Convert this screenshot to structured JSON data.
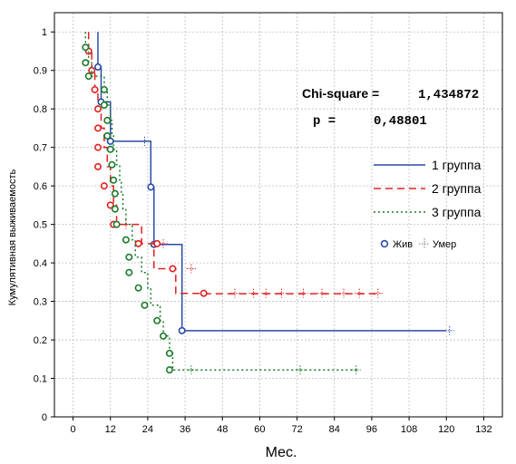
{
  "chart_data": {
    "type": "line",
    "title": "",
    "xlabel": "Мес.",
    "ylabel": "Кумулятивная выживаемость",
    "xlim": [
      -6,
      138
    ],
    "ylim": [
      0,
      1.05
    ],
    "xticks": [
      0,
      12,
      24,
      36,
      48,
      60,
      72,
      84,
      96,
      108,
      120,
      132
    ],
    "yticks": [
      0,
      0.1,
      0.2,
      0.3,
      0.4,
      0.5,
      0.6,
      0.7,
      0.8,
      0.9,
      1
    ],
    "ytick_labels": [
      "0",
      "0.1",
      "0.2",
      "0.3",
      "0.4",
      "0.5",
      "0.6",
      "0.7",
      "0.8",
      "0.9",
      "1"
    ],
    "grid": true,
    "annotations": {
      "chi_label": "Chi-square =",
      "chi_value": "1,434872",
      "p_label": "p =",
      "p_value": "0,48801"
    },
    "legend": {
      "placement": "right",
      "censor_alive": "Жив",
      "censor_dead": "Умер"
    },
    "series": [
      {
        "name": "1 группа",
        "color": "#2b4aa8",
        "dash": "solid",
        "steps": [
          [
            8,
            1.0
          ],
          [
            8,
            0.909
          ],
          [
            9,
            0.909
          ],
          [
            9,
            0.818
          ],
          [
            12,
            0.818
          ],
          [
            12,
            0.716
          ],
          [
            25,
            0.716
          ],
          [
            25,
            0.597
          ],
          [
            26,
            0.597
          ],
          [
            26,
            0.448
          ],
          [
            35,
            0.448
          ],
          [
            35,
            0.224
          ],
          [
            120,
            0.224
          ]
        ],
        "alive": [
          [
            8,
            0.909
          ],
          [
            9,
            0.818
          ],
          [
            12,
            0.716
          ],
          [
            25,
            0.597
          ],
          [
            26,
            0.448
          ],
          [
            35,
            0.224
          ]
        ],
        "dead": [
          [
            23,
            0.716
          ],
          [
            121,
            0.224
          ]
        ]
      },
      {
        "name": "2 группа",
        "color": "#e02020",
        "dash": "dashed",
        "steps": [
          [
            5,
            1.0
          ],
          [
            5,
            0.95
          ],
          [
            6,
            0.95
          ],
          [
            6,
            0.9
          ],
          [
            7,
            0.9
          ],
          [
            7,
            0.85
          ],
          [
            8,
            0.85
          ],
          [
            8,
            0.8
          ],
          [
            9,
            0.8
          ],
          [
            9,
            0.75
          ],
          [
            10,
            0.75
          ],
          [
            10,
            0.7
          ],
          [
            11,
            0.7
          ],
          [
            11,
            0.65
          ],
          [
            12,
            0.65
          ],
          [
            12,
            0.6
          ],
          [
            13,
            0.6
          ],
          [
            13,
            0.55
          ],
          [
            14,
            0.55
          ],
          [
            14,
            0.5
          ],
          [
            22,
            0.5
          ],
          [
            22,
            0.45
          ],
          [
            26,
            0.45
          ],
          [
            26,
            0.385
          ],
          [
            33,
            0.385
          ],
          [
            33,
            0.321
          ],
          [
            43,
            0.321
          ],
          [
            43,
            0.32
          ],
          [
            99,
            0.32
          ]
        ],
        "alive": [
          [
            5,
            0.95
          ],
          [
            6,
            0.9
          ],
          [
            7,
            0.85
          ],
          [
            8,
            0.8
          ],
          [
            8,
            0.75
          ],
          [
            8,
            0.7
          ],
          [
            8,
            0.65
          ],
          [
            10,
            0.6
          ],
          [
            12,
            0.55
          ],
          [
            13,
            0.5
          ],
          [
            21,
            0.45
          ],
          [
            27,
            0.45
          ],
          [
            32,
            0.385
          ],
          [
            42,
            0.321
          ]
        ],
        "dead": [
          [
            17,
            0.5
          ],
          [
            29,
            0.45
          ],
          [
            38,
            0.385
          ],
          [
            52,
            0.321
          ],
          [
            58,
            0.321
          ],
          [
            62,
            0.321
          ],
          [
            67,
            0.321
          ],
          [
            74,
            0.321
          ],
          [
            80,
            0.321
          ],
          [
            87,
            0.321
          ],
          [
            92,
            0.321
          ],
          [
            98,
            0.321
          ]
        ]
      },
      {
        "name": "3 группа",
        "color": "#1a7a2a",
        "dash": "dotted",
        "steps": [
          [
            4,
            1.0
          ],
          [
            4,
            0.96
          ],
          [
            5,
            0.96
          ],
          [
            5,
            0.92
          ],
          [
            6,
            0.92
          ],
          [
            6,
            0.885
          ],
          [
            10,
            0.885
          ],
          [
            10,
            0.85
          ],
          [
            11,
            0.85
          ],
          [
            11,
            0.81
          ],
          [
            12,
            0.81
          ],
          [
            12,
            0.77
          ],
          [
            12.5,
            0.77
          ],
          [
            12.5,
            0.73
          ],
          [
            13,
            0.73
          ],
          [
            13,
            0.695
          ],
          [
            14,
            0.695
          ],
          [
            14,
            0.655
          ],
          [
            15,
            0.655
          ],
          [
            15,
            0.615
          ],
          [
            15.5,
            0.615
          ],
          [
            15.5,
            0.58
          ],
          [
            16,
            0.58
          ],
          [
            16,
            0.54
          ],
          [
            17,
            0.54
          ],
          [
            17,
            0.5
          ],
          [
            19,
            0.5
          ],
          [
            19,
            0.46
          ],
          [
            20,
            0.46
          ],
          [
            20,
            0.415
          ],
          [
            22,
            0.415
          ],
          [
            22,
            0.375
          ],
          [
            24,
            0.375
          ],
          [
            24,
            0.335
          ],
          [
            25,
            0.335
          ],
          [
            25,
            0.29
          ],
          [
            28,
            0.29
          ],
          [
            28,
            0.25
          ],
          [
            29,
            0.25
          ],
          [
            29,
            0.21
          ],
          [
            31,
            0.21
          ],
          [
            31,
            0.165
          ],
          [
            32,
            0.165
          ],
          [
            32,
            0.122
          ],
          [
            92,
            0.122
          ]
        ],
        "alive": [
          [
            4,
            0.96
          ],
          [
            4,
            0.92
          ],
          [
            5,
            0.885
          ],
          [
            10,
            0.85
          ],
          [
            10,
            0.81
          ],
          [
            11,
            0.77
          ],
          [
            11,
            0.73
          ],
          [
            12,
            0.695
          ],
          [
            12.5,
            0.655
          ],
          [
            13,
            0.615
          ],
          [
            13.5,
            0.58
          ],
          [
            13.5,
            0.54
          ],
          [
            14,
            0.5
          ],
          [
            17,
            0.46
          ],
          [
            18,
            0.415
          ],
          [
            18,
            0.375
          ],
          [
            21,
            0.335
          ],
          [
            23,
            0.29
          ],
          [
            27,
            0.25
          ],
          [
            29,
            0.21
          ],
          [
            31,
            0.165
          ],
          [
            31,
            0.122
          ]
        ],
        "dead": [
          [
            38,
            0.122
          ],
          [
            73,
            0.122
          ],
          [
            91,
            0.122
          ]
        ]
      }
    ]
  }
}
